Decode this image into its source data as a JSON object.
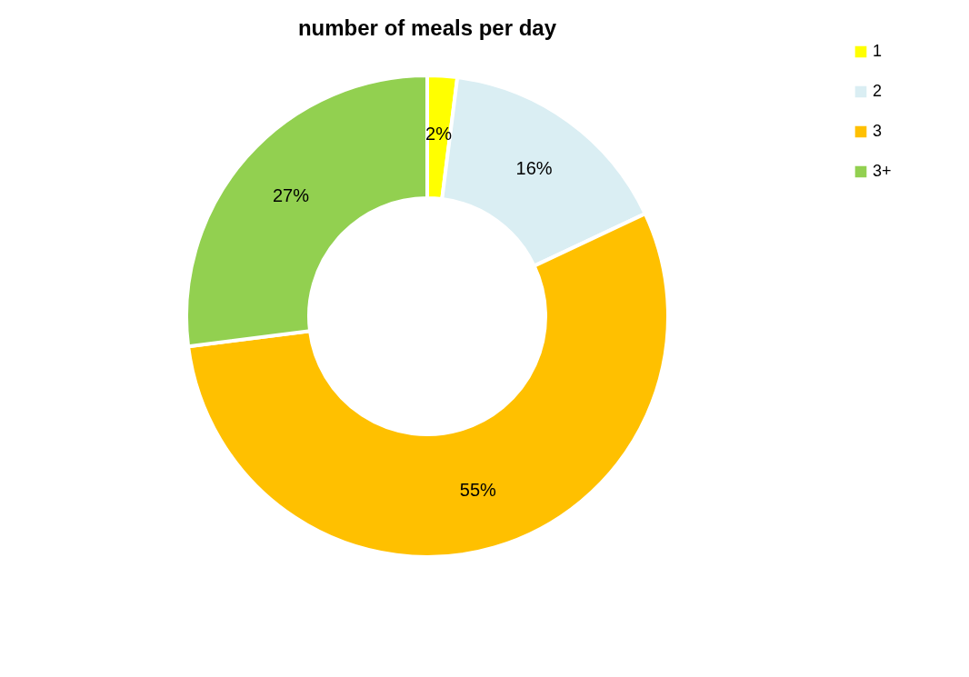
{
  "chart_data": {
    "type": "donut",
    "title": "number of meals per day",
    "categories": [
      "1",
      "2",
      "3",
      "3+"
    ],
    "values": [
      2,
      16,
      55,
      27
    ],
    "colors": [
      "#ffff00",
      "#daeef3",
      "#ffc000",
      "#92d050"
    ],
    "value_labels": [
      "2%",
      "16%",
      "55%",
      "27%"
    ],
    "legend": "right"
  }
}
